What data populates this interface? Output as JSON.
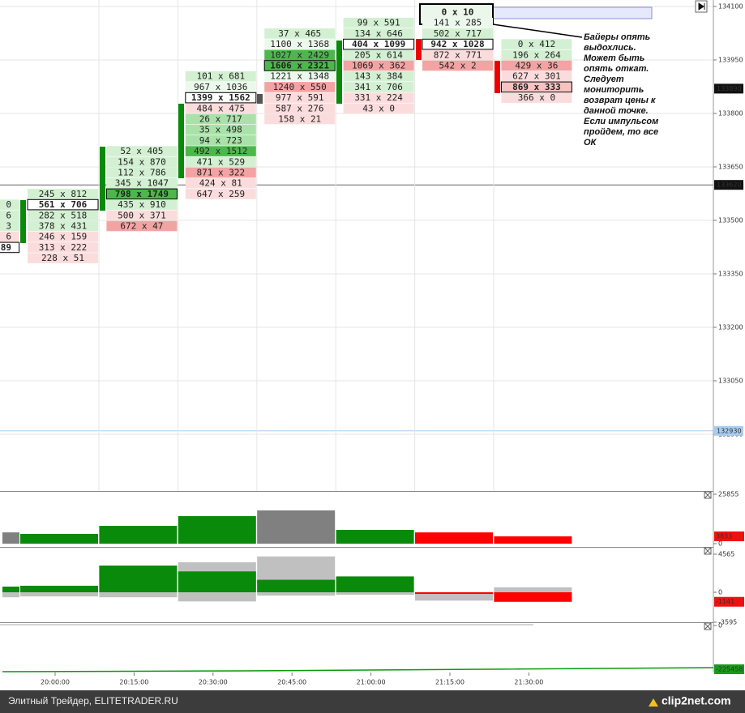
{
  "price_axis": {
    "ticks": [
      134100,
      133950,
      133800,
      133650,
      133500,
      133350,
      133200,
      133050,
      132900
    ],
    "badges": [
      133890,
      133620,
      132930
    ]
  },
  "columns": [
    {
      "cells": [
        "0",
        "6",
        "3",
        "6",
        "89"
      ]
    },
    {
      "cells": [
        "245 x 812",
        "561 x 706",
        "282 x 518",
        "378 x 431",
        "246 x 159",
        "313 x 222",
        "228 x 51"
      ]
    },
    {
      "cells": [
        "52 x 405",
        "154 x 870",
        "112 x 786",
        "345 x 1047",
        "798 x 1749",
        "435 x 910",
        "500 x 371",
        "672 x 47"
      ]
    },
    {
      "cells": [
        "101 x 681",
        "967 x 1036",
        "1399 x 1562",
        "484 x 475",
        "26 x 717",
        "35 x 498",
        "94 x 723",
        "492 x 1512",
        "471 x 529",
        "871 x 322",
        "424 x 81",
        "647 x 259"
      ]
    },
    {
      "cells": [
        "37 x 465",
        "1100 x 1368",
        "1027 x 2429",
        "1606 x 2321",
        "1221 x 1348",
        "1240 x 550",
        "977 x 591",
        "587 x 276",
        "158 x 21"
      ]
    },
    {
      "cells": [
        "99 x 591",
        "134 x 646",
        "404 x 1099",
        "205 x 614",
        "1069 x 362",
        "143 x 384",
        "341 x 706",
        "331 x 224",
        "43 x 0"
      ]
    },
    {
      "cells": [
        "0 x 10",
        "141 x 285",
        "502 x 717",
        "942 x 1028",
        "872 x 771",
        "542 x 2"
      ]
    },
    {
      "cells": [
        "0 x 412",
        "196 x 264",
        "429 x 36",
        "627 x 301",
        "869 x 333",
        "366 x 0"
      ]
    }
  ],
  "annotation": {
    "lines": [
      "Байеры опять",
      "выдохлись.",
      "Может быть",
      "опять откат.",
      "Следует",
      "мониторить",
      "возврат цены к",
      "данной точке.",
      "Если импульсом",
      "пройдем, то все",
      "ОК"
    ]
  },
  "panels": [
    {
      "ylim": [
        0,
        25855
      ],
      "yticks": [
        25855,
        0
      ],
      "badge": 3833,
      "values": [
        5900,
        5100,
        9300,
        14400,
        17400,
        7200,
        5900,
        3833
      ],
      "colors": [
        "#808080",
        "#0a8a0a",
        "#0a8a0a",
        "#0a8a0a",
        "#808080",
        "#0a8a0a",
        "#ff0000",
        "#ff0000"
      ]
    },
    {
      "ylim": [
        -3595,
        4565
      ],
      "yticks": [
        4565,
        0,
        -3595
      ],
      "badge": -1141,
      "high": [
        680,
        780,
        3200,
        3600,
        4300,
        1900,
        0,
        600
      ],
      "low": [
        -600,
        -500,
        -600,
        -1100,
        -400,
        -300,
        -1000,
        -1141
      ],
      "delta": [
        680,
        780,
        3200,
        2500,
        1500,
        1900,
        -200,
        -1141
      ],
      "colors": [
        "#0a8a0a",
        "#0a8a0a",
        "#0a8a0a",
        "#0a8a0a",
        "#0a8a0a",
        "#0a8a0a",
        "#ff0000",
        "#ff0000"
      ],
      "range_color": "#c0c0c0"
    },
    {
      "yticks": [
        0
      ],
      "badge": -225458
    }
  ],
  "time_axis": [
    "20:00:00",
    "20:15:00",
    "20:30:00",
    "20:45:00",
    "21:00:00",
    "21:15:00",
    "21:30:00"
  ],
  "footer": {
    "left": "Элитный Трейдер, ELITETRADER.RU",
    "logo": "clip2net.com"
  }
}
